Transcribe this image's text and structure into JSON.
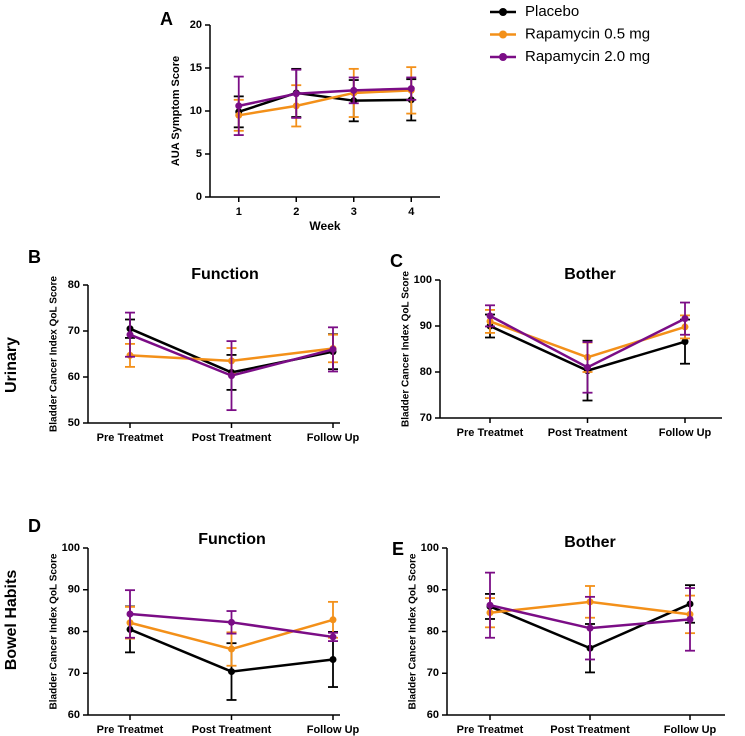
{
  "chart_data": [
    {
      "type": "line",
      "panel": "A",
      "y_label": "AUA Symptom Score",
      "x_label": "Week",
      "legend": "top-right",
      "x": [
        1,
        2,
        3,
        4
      ],
      "xlim": [
        0.5,
        4.5
      ],
      "xticks": [
        1,
        2,
        3,
        4
      ],
      "ylim": [
        0,
        20
      ],
      "yticks": [
        0,
        5,
        10,
        15,
        20
      ],
      "series": [
        {
          "name": "Placebo",
          "color": "#000000",
          "values": [
            9.9,
            12.1,
            11.2,
            11.3
          ],
          "errors": [
            1.8,
            2.8,
            2.4,
            2.4
          ]
        },
        {
          "name": "Rapamycin 0.5 mg",
          "color": "#f39019",
          "values": [
            9.5,
            10.6,
            12.1,
            12.4
          ],
          "errors": [
            1.8,
            2.4,
            2.8,
            2.7
          ]
        },
        {
          "name": "Rapamycin 2.0 mg",
          "color": "#7b0d86",
          "values": [
            10.6,
            12.0,
            12.4,
            12.6
          ],
          "errors": [
            3.4,
            2.8,
            1.5,
            1.3
          ]
        }
      ]
    },
    {
      "type": "line",
      "panel": "B",
      "row_label": "Urinary",
      "title": "Function",
      "y_label": "Bladder Cancer Index QoL Score",
      "categories": [
        "Pre Treatmet",
        "Post Treatment",
        "Follow Up"
      ],
      "ylim": [
        50,
        80
      ],
      "yticks": [
        50,
        60,
        70,
        80
      ],
      "series": [
        {
          "name": "Placebo",
          "color": "#000000",
          "values": [
            70.5,
            61,
            65.5
          ],
          "errors": [
            2,
            3.8,
            3.8
          ]
        },
        {
          "name": "Rapamycin 0.5 mg",
          "color": "#f39019",
          "values": [
            64.7,
            63.5,
            66.2
          ],
          "errors": [
            2.5,
            2.8,
            3
          ]
        },
        {
          "name": "Rapamycin 2.0 mg",
          "color": "#7b0d86",
          "values": [
            69.2,
            60.3,
            66.0
          ],
          "errors": [
            4.8,
            7.5,
            4.8
          ]
        }
      ]
    },
    {
      "type": "line",
      "panel": "C",
      "title": "Bother",
      "y_label": "Bladder Cancer Index QoL Score",
      "categories": [
        "Pre Treatmet",
        "Post Treatment",
        "Follow Up"
      ],
      "ylim": [
        70,
        100
      ],
      "yticks": [
        70,
        80,
        90,
        100
      ],
      "series": [
        {
          "name": "Placebo",
          "color": "#000000",
          "values": [
            90,
            80.3,
            86.6
          ],
          "errors": [
            2.5,
            6.5,
            4.8
          ]
        },
        {
          "name": "Rapamycin 0.5 mg",
          "color": "#f39019",
          "values": [
            91,
            83.2,
            89.8
          ],
          "errors": [
            2.5,
            3.2,
            2.5
          ]
        },
        {
          "name": "Rapamycin 2.0 mg",
          "color": "#7b0d86",
          "values": [
            92.2,
            81,
            91.6
          ],
          "errors": [
            2.3,
            5.5,
            3.5
          ]
        }
      ]
    },
    {
      "type": "line",
      "panel": "D",
      "row_label": "Bowel Habits",
      "title": "Function",
      "y_label": "Bladder Cancer Index QoL Score",
      "categories": [
        "Pre Treatmet",
        "Post Treatment",
        "Follow Up"
      ],
      "ylim": [
        60,
        100
      ],
      "yticks": [
        60,
        70,
        80,
        90,
        100
      ],
      "series": [
        {
          "name": "Placebo",
          "color": "#000000",
          "values": [
            80.5,
            70.4,
            73.3
          ],
          "errors": [
            5.5,
            6.8,
            6.6
          ]
        },
        {
          "name": "Rapamycin 0.5 mg",
          "color": "#f39019",
          "values": [
            82.1,
            75.8,
            82.8
          ],
          "errors": [
            3.8,
            4,
            4.3
          ]
        },
        {
          "name": "Rapamycin 2.0 mg",
          "color": "#7b0d86",
          "values": [
            84.2,
            82.2,
            78.7
          ],
          "errors": [
            5.7,
            2.7,
            1
          ]
        }
      ]
    },
    {
      "type": "line",
      "panel": "E",
      "title": "Bother",
      "y_label": "Bladder Cancer Index QoL Score",
      "categories": [
        "Pre Treatmet",
        "Post Treatment",
        "Follow Up"
      ],
      "ylim": [
        60,
        100
      ],
      "yticks": [
        60,
        70,
        80,
        90,
        100
      ],
      "series": [
        {
          "name": "Placebo",
          "color": "#000000",
          "values": [
            86,
            76,
            86.6
          ],
          "errors": [
            3,
            5.8,
            4.5
          ]
        },
        {
          "name": "Rapamycin 0.5 mg",
          "color": "#f39019",
          "values": [
            84.5,
            87.1,
            84.1
          ],
          "errors": [
            3.5,
            3.8,
            4.5
          ]
        },
        {
          "name": "Rapamycin 2.0 mg",
          "color": "#7b0d86",
          "values": [
            86.3,
            80.8,
            82.9
          ],
          "errors": [
            7.8,
            7.5,
            7.5
          ]
        }
      ]
    }
  ]
}
